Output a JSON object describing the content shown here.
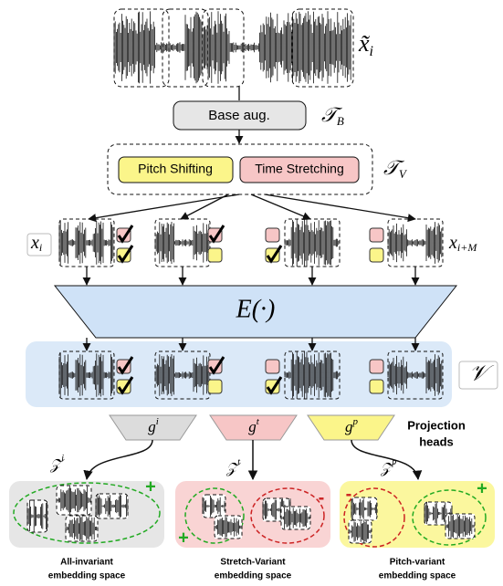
{
  "input": {
    "symbol": "x̃",
    "subscript": "i"
  },
  "base_augmentation": {
    "label": "Base aug.",
    "symbol": "𝒯",
    "subscript": "B"
  },
  "variant_augmentation": {
    "options": [
      "Pitch Shifting",
      "Time Stretching"
    ],
    "symbol": "𝒯",
    "subscript": "V"
  },
  "views": {
    "first": {
      "symbol": "x",
      "subscript": "i"
    },
    "last": {
      "symbol": "x",
      "subscript": "i+M"
    }
  },
  "encoder": {
    "label": "E(·)"
  },
  "representations": {
    "symbol": "𝒱"
  },
  "projection_heads": {
    "label_lines": [
      "Projection",
      "heads"
    ],
    "heads": [
      {
        "symbol": "g",
        "superscript": "i",
        "embedding": {
          "symbol": "𝒵",
          "superscript": "i"
        },
        "space_lines": [
          "All-invariant",
          "embedding space"
        ],
        "signs": [
          "+"
        ]
      },
      {
        "symbol": "g",
        "superscript": "t",
        "embedding": {
          "symbol": "𝒵",
          "superscript": "t"
        },
        "space_lines": [
          "Stretch-Variant",
          "embedding space"
        ],
        "signs": [
          "+",
          "-"
        ]
      },
      {
        "symbol": "g",
        "superscript": "p",
        "embedding": {
          "symbol": "𝒵",
          "superscript": "p"
        },
        "space_lines": [
          "Pitch-variant",
          "embedding space"
        ],
        "signs": [
          "-",
          "+"
        ]
      }
    ]
  }
}
